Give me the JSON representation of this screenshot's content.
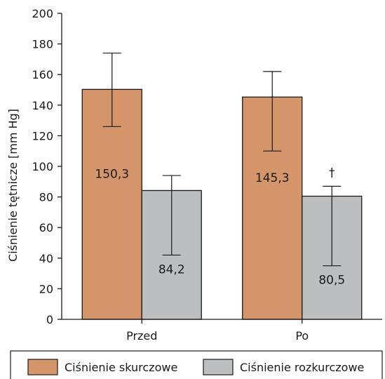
{
  "chart_data": {
    "type": "bar",
    "ylabel": "Ciśnienie tętnicze [mm Hg]",
    "ylim": [
      0,
      200
    ],
    "y_ticks": [
      0,
      20,
      40,
      60,
      80,
      100,
      120,
      140,
      160,
      180,
      200
    ],
    "categories": [
      "Przed",
      "Po"
    ],
    "series": [
      {
        "name": "Ciśnienie skurczowe",
        "color": "#d4956b",
        "values": [
          150.3,
          145.3
        ],
        "value_labels": [
          "150,3",
          "145,3"
        ],
        "error_upper": [
          174,
          162
        ],
        "error_lower": [
          126,
          110
        ]
      },
      {
        "name": "Ciśnienie rozkurczowe",
        "color": "#bcbec0",
        "values": [
          84.2,
          80.5
        ],
        "value_labels": [
          "84,2",
          "80,5"
        ],
        "error_upper": [
          94,
          87
        ],
        "error_lower": [
          42,
          35
        ]
      }
    ],
    "annotations": [
      {
        "text": "†",
        "category": "Po",
        "series": "Ciśnienie rozkurczowe"
      }
    ],
    "legend_position": "bottom",
    "grid": false
  }
}
